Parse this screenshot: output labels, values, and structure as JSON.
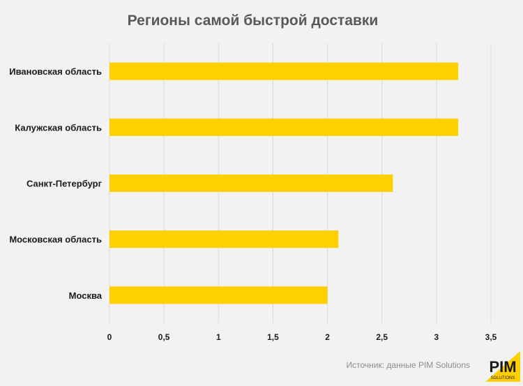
{
  "chart_data": {
    "type": "bar",
    "orientation": "horizontal",
    "title": "Регионы самой быстрой доставки",
    "categories": [
      "Ивановская область",
      "Калужская область",
      "Санкт-Петербург",
      "Московская область",
      "Москва"
    ],
    "values": [
      3.2,
      3.2,
      2.6,
      2.1,
      2.0
    ],
    "xlim": [
      0,
      3.5
    ],
    "xticks": [
      0,
      0.5,
      1,
      1.5,
      2,
      2.5,
      3,
      3.5
    ],
    "xtick_labels": [
      "0",
      "0,5",
      "1",
      "1,5",
      "2",
      "2,5",
      "3",
      "3,5"
    ],
    "grid": true,
    "bar_color": "#ffd000",
    "grid_color": "#d9d9d9"
  },
  "source_note": "Источник: данные PIM Solutions",
  "logo": {
    "text": "PIM",
    "subtext": "SOLUTIONS",
    "color": "#ffd000"
  }
}
